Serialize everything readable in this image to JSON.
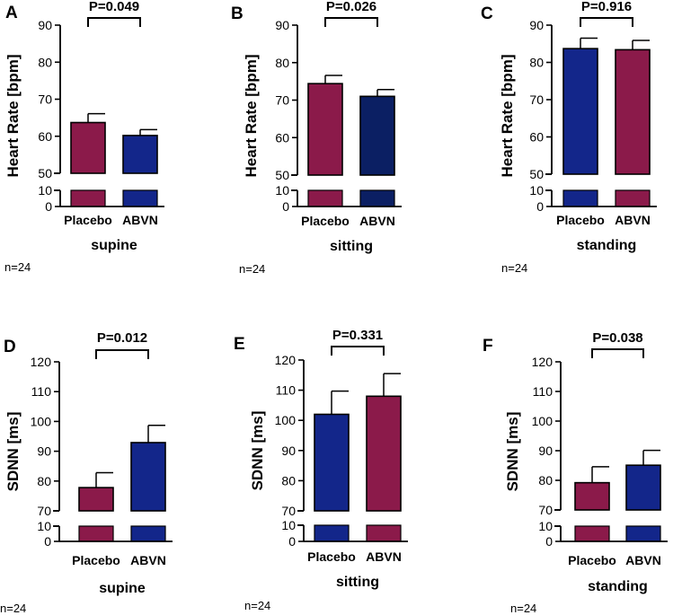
{
  "figure": {
    "colors": {
      "placebo": "#8b1a4a",
      "abvn": "#13268a",
      "abvn_dark": "#0b1f63"
    }
  },
  "chart_data": [
    {
      "type": "bar",
      "panel": "A",
      "title": "",
      "ylabel": "Heart Rate [bpm]",
      "categories": [
        "Placebo",
        "ABVN"
      ],
      "condition": "supine",
      "n": "n=24",
      "values": [
        63.7,
        60.2
      ],
      "errors": [
        2.4,
        1.6
      ],
      "bar_colors": [
        "#8b1a4a",
        "#13268a"
      ],
      "p_value": "P=0.049",
      "ylim_upper": [
        50,
        90
      ],
      "yticks_upper": [
        50,
        60,
        70,
        80,
        90
      ],
      "ylim_lower": [
        0,
        10
      ],
      "yticks_lower": [
        0,
        10
      ]
    },
    {
      "type": "bar",
      "panel": "B",
      "title": "",
      "ylabel": "Heart Rate [bpm]",
      "categories": [
        "Placebo",
        "ABVN"
      ],
      "condition": "sitting",
      "n": "n=24",
      "values": [
        74.4,
        71.0
      ],
      "errors": [
        2.2,
        1.8
      ],
      "bar_colors": [
        "#8b1a4a",
        "#0b1f63"
      ],
      "p_value": "P=0.026",
      "ylim_upper": [
        50,
        90
      ],
      "yticks_upper": [
        50,
        60,
        70,
        80,
        90
      ],
      "ylim_lower": [
        0,
        10
      ],
      "yticks_lower": [
        0,
        10
      ]
    },
    {
      "type": "bar",
      "panel": "C",
      "title": "",
      "ylabel": "Heart Rate [bpm]",
      "categories": [
        "Placebo",
        "ABVN"
      ],
      "condition": "standing",
      "n": "n=24",
      "values": [
        83.7,
        83.4
      ],
      "errors": [
        2.8,
        2.5
      ],
      "bar_colors": [
        "#13268a",
        "#8b1a4a"
      ],
      "p_value": "P=0.916",
      "ylim_upper": [
        50,
        90
      ],
      "yticks_upper": [
        50,
        60,
        70,
        80,
        90
      ],
      "ylim_lower": [
        0,
        10
      ],
      "yticks_lower": [
        0,
        10
      ]
    },
    {
      "type": "bar",
      "panel": "D",
      "title": "",
      "ylabel": "SDNN [ms]",
      "categories": [
        "Placebo",
        "ABVN"
      ],
      "condition": "supine",
      "n": "n=24",
      "values": [
        77.8,
        92.9
      ],
      "errors": [
        5.0,
        5.8
      ],
      "bar_colors": [
        "#8b1a4a",
        "#13268a"
      ],
      "p_value": "P=0.012",
      "ylim_upper": [
        70,
        120
      ],
      "yticks_upper": [
        70,
        80,
        90,
        100,
        110,
        120
      ],
      "ylim_lower": [
        0,
        10
      ],
      "yticks_lower": [
        0,
        10
      ]
    },
    {
      "type": "bar",
      "panel": "E",
      "title": "",
      "ylabel": "SDNN [ms]",
      "categories": [
        "Placebo",
        "ABVN"
      ],
      "condition": "sitting",
      "n": "n=24",
      "values": [
        102.0,
        108.0
      ],
      "errors": [
        7.7,
        7.5
      ],
      "bar_colors": [
        "#13268a",
        "#8b1a4a"
      ],
      "p_value": "P=0.331",
      "ylim_upper": [
        70,
        120
      ],
      "yticks_upper": [
        70,
        80,
        90,
        100,
        110,
        120
      ],
      "ylim_lower": [
        0,
        10
      ],
      "yticks_lower": [
        0,
        10
      ]
    },
    {
      "type": "bar",
      "panel": "F",
      "title": "",
      "ylabel": "SDNN [ms]",
      "categories": [
        "Placebo",
        "ABVN"
      ],
      "condition": "standing",
      "n": "n=24",
      "values": [
        79.2,
        85.1
      ],
      "errors": [
        5.4,
        5.0
      ],
      "bar_colors": [
        "#8b1a4a",
        "#13268a"
      ],
      "p_value": "P=0.038",
      "ylim_upper": [
        70,
        120
      ],
      "yticks_upper": [
        70,
        80,
        90,
        100,
        110,
        120
      ],
      "ylim_lower": [
        0,
        10
      ],
      "yticks_lower": [
        0,
        10
      ]
    }
  ]
}
